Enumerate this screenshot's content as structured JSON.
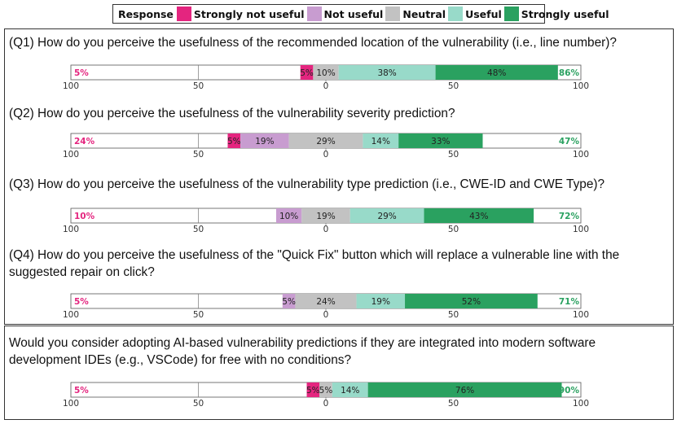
{
  "legend": {
    "title": "Response",
    "entries": [
      {
        "label": "Strongly not useful",
        "color": "#e4257f"
      },
      {
        "label": "Not useful",
        "color": "#c89cd0"
      },
      {
        "label": "Neutral",
        "color": "#c2c2c2"
      },
      {
        "label": "Useful",
        "color": "#98dac9"
      },
      {
        "label": "Strongly useful",
        "color": "#2aa160"
      }
    ]
  },
  "colors": {
    "negative_total": "#e4257f",
    "positive_total": "#2aa160"
  },
  "chart_data": {
    "type": "bar",
    "subtype": "diverging-stacked-likert",
    "xlim": [
      -100,
      100
    ],
    "tick_labels": [
      "100",
      "50",
      "0",
      "50",
      "100"
    ],
    "series_names": [
      "Strongly not useful",
      "Not useful",
      "Neutral",
      "Useful",
      "Strongly useful"
    ],
    "questions": [
      {
        "text": "(Q1) How do you perceive the usefulness of the recommended location of the vulnerability (i.e., line number)?",
        "values": [
          5,
          0,
          10,
          38,
          48
        ],
        "labels": [
          "5%",
          "",
          "10%",
          "38%",
          "48%"
        ],
        "negative_total": "5%",
        "positive_total": "86%"
      },
      {
        "text": "(Q2) How do you perceive the usefulness of the vulnerability severity prediction?",
        "values": [
          5,
          19,
          29,
          14,
          33
        ],
        "labels": [
          "5%",
          "19%",
          "29%",
          "14%",
          "33%"
        ],
        "negative_total": "24%",
        "positive_total": "47%"
      },
      {
        "text": "(Q3) How do you perceive the usefulness of the vulnerability type prediction (i.e., CWE-ID and CWE Type)?",
        "values": [
          0,
          10,
          19,
          29,
          43
        ],
        "labels": [
          "",
          "10%",
          "19%",
          "29%",
          "43%"
        ],
        "negative_total": "10%",
        "positive_total": "72%"
      },
      {
        "text": "(Q4) How do you perceive the usefulness of the \"Quick Fix\" button which will replace a vulnerable line with the suggested repair on click?",
        "values": [
          0,
          5,
          24,
          19,
          52
        ],
        "labels": [
          "",
          "5%",
          "24%",
          "19%",
          "52%"
        ],
        "negative_total": "5%",
        "positive_total": "71%"
      },
      {
        "text": "Would you consider adopting AI-based vulnerability predictions if they are integrated into modern software development IDEs (e.g., VSCode) for free with no conditions?",
        "values": [
          5,
          0,
          5,
          14,
          76
        ],
        "labels": [
          "5%",
          "",
          "5%",
          "14%",
          "76%"
        ],
        "negative_total": "5%",
        "positive_total": "90%"
      }
    ]
  }
}
